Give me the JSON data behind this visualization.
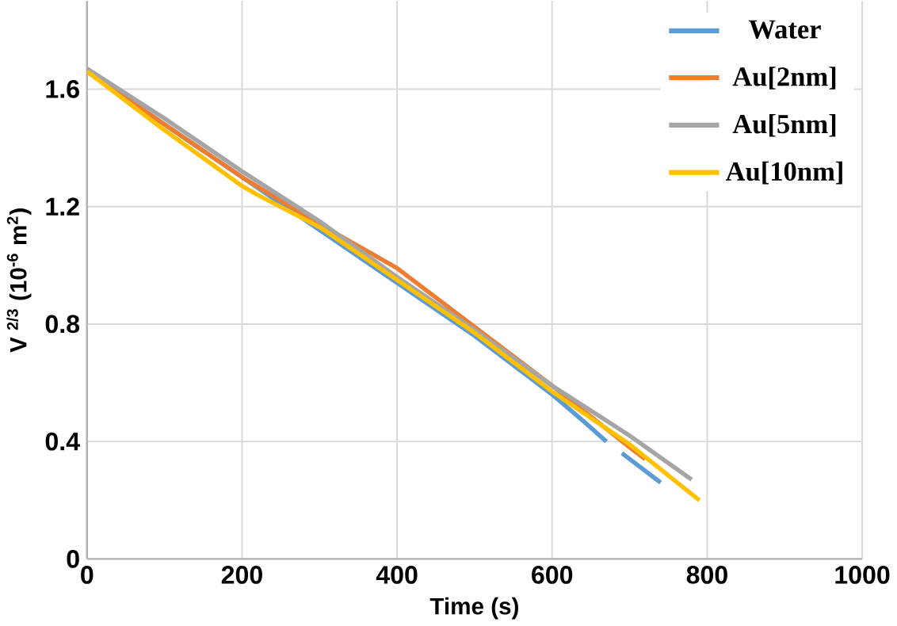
{
  "chart_data": {
    "type": "line",
    "xlabel": "Time (s)",
    "ylabel": "V $^{2/3}$ (10$^{-6}$ m$^{2}$)",
    "xlim": [
      0,
      1000
    ],
    "xticks": [
      0,
      200,
      400,
      600,
      800,
      1000
    ],
    "ylim": [
      0,
      1.9
    ],
    "yticks": [
      0,
      0.4,
      0.8,
      1.2,
      1.6
    ],
    "grid": true,
    "legend": "top right",
    "marker": "none",
    "line_style": "solid",
    "series": [
      {
        "name": "Water",
        "color": "#5b9bd5",
        "x": [
          0,
          100,
          200,
          300,
          400,
          500,
          600,
          640,
          670,
          680,
          690,
          740
        ],
        "values": [
          1.66,
          1.48,
          1.3,
          1.12,
          0.94,
          0.76,
          0.56,
          0.47,
          0.4,
          null,
          0.36,
          0.26
        ]
      },
      {
        "name": "Au[2nm]",
        "color": "#ed7d31",
        "x": [
          0,
          100,
          200,
          300,
          360,
          400,
          500,
          600,
          700,
          720
        ],
        "values": [
          1.66,
          1.48,
          1.3,
          1.14,
          1.05,
          0.99,
          0.79,
          0.59,
          0.38,
          0.34
        ]
      },
      {
        "name": "Au[5nm]",
        "color": "#a5a5a5",
        "x": [
          0,
          100,
          200,
          300,
          400,
          500,
          600,
          700,
          780
        ],
        "values": [
          1.67,
          1.5,
          1.32,
          1.15,
          0.96,
          0.78,
          0.59,
          0.42,
          0.27
        ]
      },
      {
        "name": "Au[10nm]",
        "color": "#ffc000",
        "x": [
          0,
          100,
          200,
          220,
          300,
          400,
          500,
          600,
          700,
          790
        ],
        "values": [
          1.66,
          1.46,
          1.27,
          1.24,
          1.13,
          0.95,
          0.77,
          0.57,
          0.39,
          0.2
        ]
      }
    ]
  }
}
